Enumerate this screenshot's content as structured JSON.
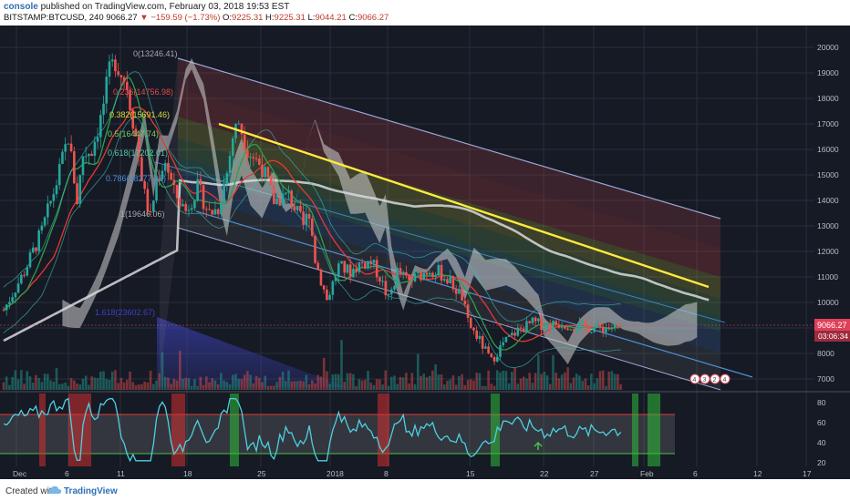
{
  "header": {
    "user": "console",
    "published": "published on TradingView.com, February 03, 2018 19:53 EST",
    "symbol": "BITSTAMP:BTCUSD, 240",
    "price": "9066.27",
    "change": "−159.59 (−1.73%)",
    "open_label": "O:",
    "open": "9225.31",
    "high_label": "H:",
    "high": "9225.31",
    "low_label": "L:",
    "low": "9044.21",
    "close_label": "C:",
    "close": "9066.27"
  },
  "footer": {
    "created_with": "Created with",
    "brand": "TradingView"
  },
  "colors": {
    "background": "#161a25",
    "up": "#26a69a",
    "down": "#ef5350",
    "trend": "#ffeb3b",
    "rsi": "#4dd0e1",
    "ma": "#d9d9d9"
  },
  "chart_data": {
    "type": "candlestick",
    "price_axis": {
      "ticks": [
        20000,
        19000,
        18000,
        17000,
        16000,
        15000,
        14000,
        13000,
        12000,
        11000,
        10000,
        9000,
        8000,
        7000
      ],
      "range": [
        6500,
        20800
      ]
    },
    "last_price_label": "9066.27",
    "countdown_label": "03:06:34",
    "x_axis": {
      "ticks": [
        "Dec",
        "6",
        "11",
        "18",
        "25",
        "2018",
        "8",
        "15",
        "22",
        "27",
        "Feb",
        "6",
        "12",
        "17"
      ]
    },
    "rsi_axis": {
      "ticks": [
        80,
        60,
        40,
        20
      ],
      "range": [
        15,
        90
      ]
    },
    "fib_levels": [
      {
        "label": "0(13246.41)",
        "color": "#a8a8a8"
      },
      {
        "label": "0.236(14756.98)",
        "color": "#e04b4b"
      },
      {
        "label": "0.382(15691.46)",
        "color": "#d9d93a"
      },
      {
        "label": "0.5(16447.74)",
        "color": "#7ccf5f"
      },
      {
        "label": "0.618(17202.01)",
        "color": "#55c9a3"
      },
      {
        "label": "0.786(18277.32)",
        "color": "#4f8fd6"
      },
      {
        "label": "1(19646.06)",
        "color": "#a8a8a8"
      },
      {
        "label": "1.618(23602.67)",
        "color": "#4040c0"
      }
    ],
    "price_series": {
      "d": [
        0,
        7,
        13,
        18,
        22,
        25,
        27,
        30,
        33,
        36,
        38,
        42,
        45,
        48,
        50,
        52,
        55,
        58,
        62,
        66,
        70,
        73,
        76,
        78,
        80,
        83,
        88,
        92,
        97,
        102,
        104,
        106,
        110,
        114,
        118,
        121,
        125,
        128,
        131,
        134,
        138,
        142,
        145,
        148,
        152,
        156,
        158,
        162,
        166,
        170,
        175,
        180,
        185,
        190,
        195,
        200,
        204,
        206,
        208,
        210
      ],
      "p": [
        9700,
        11200,
        12800,
        14700,
        16500,
        14000,
        15800,
        16000,
        17200,
        19000,
        19500,
        18500,
        16500,
        14200,
        13300,
        14800,
        15600,
        14300,
        13600,
        14500,
        13500,
        13700,
        15100,
        16500,
        17100,
        16000,
        15300,
        14000,
        14200,
        13000,
        13600,
        11700,
        10100,
        11400,
        11200,
        11500,
        11600,
        11000,
        10100,
        11200,
        10800,
        11100,
        11300,
        11200,
        10800,
        10200,
        9200,
        8500,
        7700,
        8400,
        8900,
        9200,
        9100,
        9200,
        9066,
        9000,
        9000,
        9050,
        9020,
        9066
      ],
      "x_domain": [
        0,
        230
      ]
    },
    "rsi_band": [
      30,
      70
    ],
    "badges": [
      "4",
      "3",
      "2",
      "4"
    ]
  }
}
